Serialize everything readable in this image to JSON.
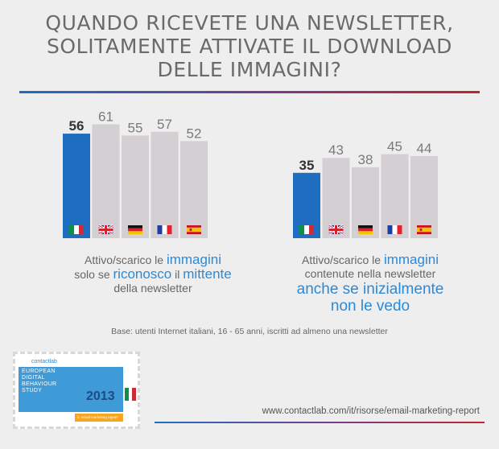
{
  "title": {
    "line1": "QUANDO RICEVETE UNA NEWSLETTER,",
    "line2": "SOLITAMENTE ATTIVATE IL DOWNLOAD",
    "line3": "DELLE IMMAGINI?"
  },
  "colors": {
    "highlight_bar": "#1f6dc0",
    "other_bar": "#d3cfd3",
    "accent_text": "#2b8ad8",
    "rule_start": "#1f6fbd",
    "rule_end": "#c0262a"
  },
  "chart_data": [
    {
      "type": "bar",
      "categories": [
        "Italy",
        "United Kingdom",
        "Germany",
        "France",
        "Spain"
      ],
      "flags": [
        "italy-flag",
        "uk-flag",
        "germany-flag",
        "france-flag",
        "spain-flag"
      ],
      "values": [
        56,
        61,
        55,
        57,
        52
      ],
      "value_labels": [
        "56",
        "61",
        "55",
        "57",
        "52"
      ],
      "highlight_index": 0,
      "title": "",
      "xlabel": "",
      "ylabel": "",
      "ylim": [
        0,
        70
      ],
      "grid": false,
      "legend": "none"
    },
    {
      "type": "bar",
      "categories": [
        "Italy",
        "United Kingdom",
        "Germany",
        "France",
        "Spain"
      ],
      "flags": [
        "italy-flag",
        "uk-flag",
        "germany-flag",
        "france-flag",
        "spain-flag"
      ],
      "values": [
        35,
        43,
        38,
        45,
        44
      ],
      "value_labels": [
        "35",
        "43",
        "38",
        "45",
        "44"
      ],
      "highlight_index": 0,
      "title": "",
      "xlabel": "",
      "ylabel": "",
      "ylim": [
        0,
        70
      ],
      "grid": false,
      "legend": "none"
    }
  ],
  "captions": {
    "left": {
      "p1": "Attivo/scarico le ",
      "p2": "immagini",
      "p3": "solo se ",
      "p4": "riconosco",
      "p5": " il ",
      "p6": "mittente",
      "p7": "della newsletter"
    },
    "right": {
      "p1": "Attivo/scarico le ",
      "p2": "immagini",
      "p3": "contenute nella newsletter",
      "p4": "anche se inizialmente",
      "p5": "non le vedo"
    }
  },
  "base_note": "Base: utenti Internet italiani, 16 - 65 anni, iscritti ad almeno una newsletter",
  "thumbnail": {
    "logo": "contactlab",
    "line1": "EUROPEAN",
    "line2": "DIGITAL",
    "line3": "BEHAVIOUR",
    "line4": "STUDY",
    "year": "2013",
    "strip": "2. email marketing report"
  },
  "footer_url": "www.contactlab.com/it/risorse/email-marketing-report"
}
